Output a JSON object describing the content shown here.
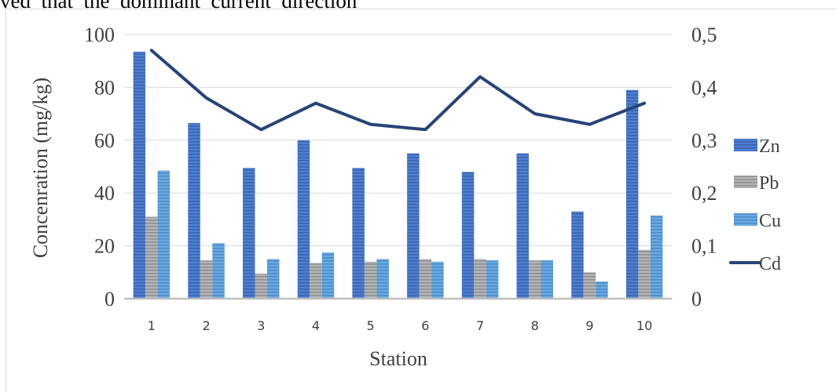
{
  "header": {
    "text": "ved  that  the  dominant  current  direction"
  },
  "chart_data": {
    "type": "bar",
    "categories": [
      "1",
      "2",
      "3",
      "4",
      "5",
      "6",
      "7",
      "8",
      "9",
      "10"
    ],
    "series": [
      {
        "name": "Zn",
        "type": "bar",
        "axis": "left",
        "color": "#4472c4",
        "values": [
          93.5,
          66.5,
          49.5,
          60.0,
          49.5,
          55.0,
          48.0,
          55.0,
          33.0,
          79.0
        ]
      },
      {
        "name": "Pb",
        "type": "bar",
        "axis": "left",
        "color": "#a5a5a5",
        "values": [
          31.0,
          14.5,
          9.5,
          13.5,
          14.0,
          15.0,
          15.0,
          14.5,
          10.0,
          18.5
        ]
      },
      {
        "name": "Cu",
        "type": "bar",
        "axis": "left",
        "color": "#5b9bd5",
        "values": [
          48.5,
          21.0,
          15.0,
          17.5,
          15.0,
          14.0,
          14.5,
          14.5,
          6.5,
          31.5
        ]
      },
      {
        "name": "Cd",
        "type": "line",
        "axis": "right",
        "color": "#264478",
        "values": [
          0.47,
          0.38,
          0.32,
          0.37,
          0.33,
          0.32,
          0.42,
          0.35,
          0.33,
          0.37
        ]
      }
    ],
    "xlabel": "Station",
    "ylabel": "Concenration (mg/kg)",
    "ylim": [
      0,
      100
    ],
    "y2lim": [
      0,
      0.5
    ],
    "yticks": [
      "0",
      "20",
      "40",
      "60",
      "80",
      "100"
    ],
    "y2ticks": [
      "0",
      "0,1",
      "0,2",
      "0,3",
      "0,4",
      "0,5"
    ],
    "grid": true,
    "legend": "right"
  }
}
